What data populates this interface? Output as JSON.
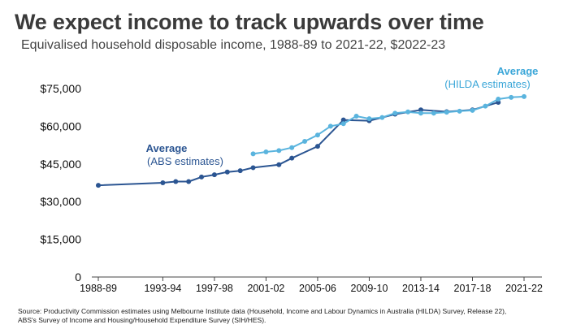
{
  "title": "We expect income to track upwards over time",
  "subtitle": "Equivalised household disposable income, 1988-89 to 2021-22, $2022-23",
  "source_lines": [
    "Source: Productivity Commission estimates using Melbourne Institute data (Household, Income and Labour Dynamics in Australia (HILDA) Survey, Release 22),",
    "ABS's Survey of Income and Housing/Household Expenditure Survey (SIH/HES)."
  ],
  "colors": {
    "abs": "#2b5592",
    "hilda": "#5ab4de",
    "axis": "#444444"
  },
  "chart_data": {
    "type": "line",
    "title": "Equivalised household disposable income",
    "xlabel": "",
    "ylabel": "",
    "ylim": [
      0,
      75000
    ],
    "xlim": [
      1988,
      2021
    ],
    "yticks": [
      0,
      15000,
      30000,
      45000,
      60000,
      75000
    ],
    "ytick_labels": [
      "0",
      "$15,000",
      "$30,000",
      "$45,000",
      "$60,000",
      "$75,000"
    ],
    "xticks": [
      1988,
      1993,
      1997,
      2001,
      2005,
      2009,
      2013,
      2017,
      2021
    ],
    "xtick_labels": [
      "1988-89",
      "1993-94",
      "1997-98",
      "2001-02",
      "2005-06",
      "2009-10",
      "2013-14",
      "2017-18",
      "2021-22"
    ],
    "grid": false,
    "series": [
      {
        "name": "ABS estimates",
        "label_title": "Average",
        "label_sub": "(ABS estimates)",
        "color": "#2b5592",
        "x": [
          1988,
          1993,
          1994,
          1995,
          1996,
          1997,
          1998,
          1999,
          2000,
          2002,
          2003,
          2005,
          2007,
          2009,
          2011,
          2013,
          2015,
          2017,
          2019
        ],
        "y": [
          36500,
          37500,
          38000,
          38000,
          39800,
          40700,
          41800,
          42300,
          43500,
          44700,
          47300,
          52000,
          62500,
          62200,
          64800,
          66500,
          65800,
          66500,
          69500
        ]
      },
      {
        "name": "HILDA estimates",
        "label_title": "Average",
        "label_sub": "(HILDA estimates)",
        "color": "#5ab4de",
        "x": [
          2000,
          2001,
          2002,
          2003,
          2004,
          2005,
          2006,
          2007,
          2008,
          2009,
          2010,
          2011,
          2012,
          2013,
          2014,
          2015,
          2016,
          2017,
          2018,
          2019,
          2020,
          2021
        ],
        "y": [
          49000,
          49800,
          50300,
          51500,
          54000,
          56500,
          60000,
          61000,
          64000,
          63000,
          63500,
          65200,
          65700,
          65200,
          65200,
          65600,
          66000,
          66300,
          68000,
          70800,
          71500,
          71800
        ]
      }
    ]
  }
}
